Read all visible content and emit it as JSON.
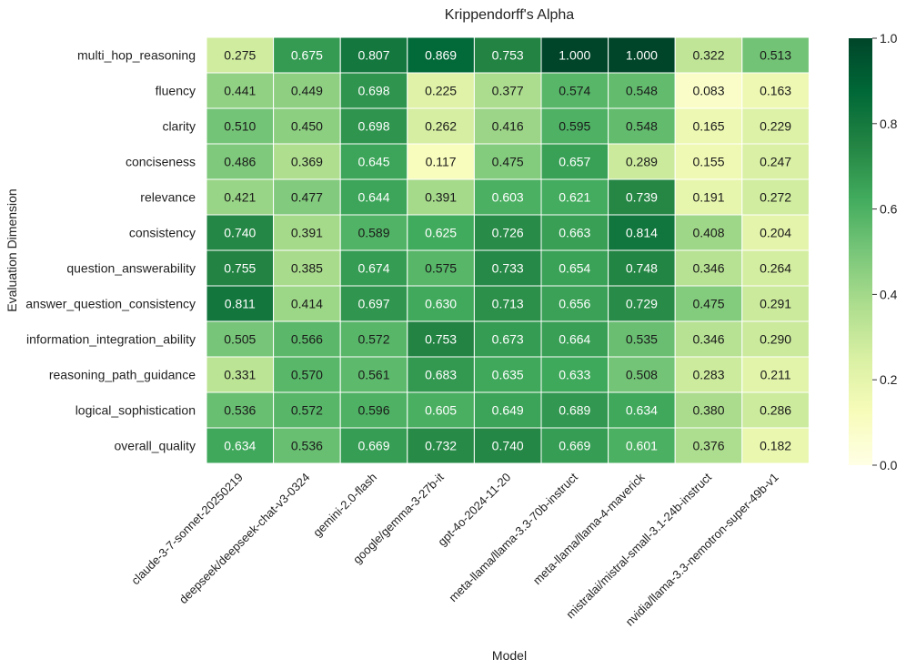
{
  "chart_data": {
    "type": "heatmap",
    "title": "Krippendorff's Alpha",
    "xlabel": "Model",
    "ylabel": "Evaluation Dimension",
    "x_categories": [
      "claude-3-7-sonnet-20250219",
      "deepseek/deepseek-chat-v3-0324",
      "gemini-2.0-flash",
      "google/gemma-3-27b-it",
      "gpt-4o-2024-11-20",
      "meta-llama/llama-3.3-70b-instruct",
      "meta-llama/llama-4-maverick",
      "mistralai/mistral-small-3.1-24b-instruct",
      "nvidia/llama-3.3-nemotron-super-49b-v1"
    ],
    "y_categories": [
      "multi_hop_reasoning",
      "fluency",
      "clarity",
      "conciseness",
      "relevance",
      "consistency",
      "question_answerability",
      "answer_question_consistency",
      "information_integration_ability",
      "reasoning_path_guidance",
      "logical_sophistication",
      "overall_quality"
    ],
    "values": [
      [
        0.275,
        0.675,
        0.807,
        0.869,
        0.753,
        1.0,
        1.0,
        0.322,
        0.513
      ],
      [
        0.441,
        0.449,
        0.698,
        0.225,
        0.377,
        0.574,
        0.548,
        0.083,
        0.163
      ],
      [
        0.51,
        0.45,
        0.698,
        0.262,
        0.416,
        0.595,
        0.548,
        0.165,
        0.229
      ],
      [
        0.486,
        0.369,
        0.645,
        0.117,
        0.475,
        0.657,
        0.289,
        0.155,
        0.247
      ],
      [
        0.421,
        0.477,
        0.644,
        0.391,
        0.603,
        0.621,
        0.739,
        0.191,
        0.272
      ],
      [
        0.74,
        0.391,
        0.589,
        0.625,
        0.726,
        0.663,
        0.814,
        0.408,
        0.204
      ],
      [
        0.755,
        0.385,
        0.674,
        0.575,
        0.733,
        0.654,
        0.748,
        0.346,
        0.264
      ],
      [
        0.811,
        0.414,
        0.697,
        0.63,
        0.713,
        0.656,
        0.729,
        0.475,
        0.291
      ],
      [
        0.505,
        0.566,
        0.572,
        0.753,
        0.673,
        0.664,
        0.535,
        0.346,
        0.29
      ],
      [
        0.331,
        0.57,
        0.561,
        0.683,
        0.635,
        0.633,
        0.508,
        0.283,
        0.211
      ],
      [
        0.536,
        0.572,
        0.596,
        0.605,
        0.649,
        0.689,
        0.634,
        0.38,
        0.286
      ],
      [
        0.634,
        0.536,
        0.669,
        0.732,
        0.74,
        0.669,
        0.601,
        0.376,
        0.182
      ]
    ],
    "value_format": "3 decimals",
    "colorbar": {
      "colormap": "YlGn",
      "range": [
        0.0,
        1.0
      ],
      "ticks": [
        "0.0",
        "0.2",
        "0.4",
        "0.6",
        "0.8",
        "1.0"
      ],
      "placement": "right"
    },
    "colors": [
      "#ffffe5",
      "#f7fcb9",
      "#d9f0a3",
      "#addd8e",
      "#78c679",
      "#41ab5d",
      "#238443",
      "#006837",
      "#004529"
    ]
  }
}
